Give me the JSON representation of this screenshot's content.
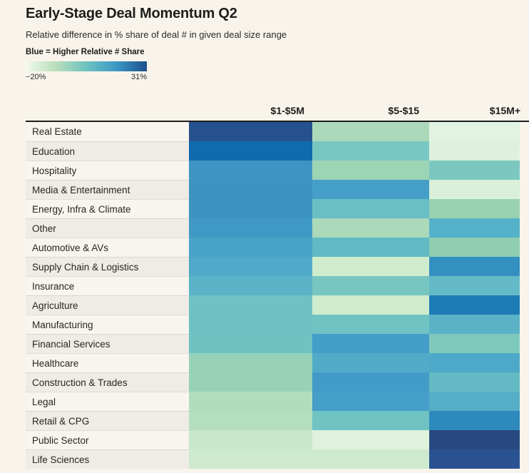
{
  "chart_data": {
    "type": "heatmap",
    "title": "Early-Stage Deal Momentum Q2",
    "subtitle": "Relative difference in % share of deal # in given deal size range",
    "legend": {
      "label": "Blue = Higher Relative # Share",
      "min_label": "−20%",
      "max_label": "31%",
      "min_value": -20,
      "max_value": 31,
      "gradient_stops": [
        "#f2faee",
        "#b9deba",
        "#6dc2c0",
        "#3b98c5",
        "#1d4e8d"
      ]
    },
    "columns": [
      "$1-$5M",
      "$5-$15",
      "$15M+"
    ],
    "rows": [
      "Real Estate",
      "Education",
      "Hospitality",
      "Media & Entertainment",
      "Energy, Infra & Climate",
      "Other",
      "Automotive & AVs",
      "Supply Chain & Logistics",
      "Insurance",
      "Agriculture",
      "Manufacturing",
      "Financial Services",
      "Healthcare",
      "Construction & Trades",
      "Legal",
      "Retail & CPG",
      "Public Sector",
      "Life Sciences"
    ],
    "cell_colors": [
      [
        "#26518f",
        "#abd9b9",
        "#e3f3e3"
      ],
      [
        "#1169ae",
        "#79c7c2",
        "#dff1de"
      ],
      [
        "#3e95c3",
        "#9cd4b6",
        "#7cc8c0"
      ],
      [
        "#3e93c2",
        "#459fc7",
        "#daf0da"
      ],
      [
        "#3d94c3",
        "#69bfc4",
        "#99d2b1"
      ],
      [
        "#4099c5",
        "#abd9b9",
        "#55b1c9"
      ],
      [
        "#4aa3c8",
        "#61bac4",
        "#8fceb0"
      ],
      [
        "#50a9c8",
        "#cfeccd",
        "#3390c0"
      ],
      [
        "#5cb3c7",
        "#78c6c1",
        "#64bac6"
      ],
      [
        "#6ec2c4",
        "#cfeccd",
        "#1d7cb6"
      ],
      [
        "#6dc1c3",
        "#6fc3c2",
        "#5bb2c6"
      ],
      [
        "#6ec2c2",
        "#439dc7",
        "#7fc9bc"
      ],
      [
        "#96d1b8",
        "#51abc8",
        "#4ea9c8"
      ],
      [
        "#97d2b7",
        "#439cc7",
        "#64bac4"
      ],
      [
        "#b2ddbd",
        "#459fc8",
        "#54aec7"
      ],
      [
        "#b5debf",
        "#6fc3c3",
        "#2e89bc"
      ],
      [
        "#c8e8cb",
        "#dff2dc",
        "#28497f"
      ],
      [
        "#cdeacd",
        "#cdeacd",
        "#2a5290"
      ]
    ],
    "values_estimated_pct": [
      [
        28,
        -11,
        -18
      ],
      [
        22,
        -3,
        -17
      ],
      [
        12,
        -9,
        -4
      ],
      [
        12,
        9,
        -17
      ],
      [
        12,
        1,
        -9
      ],
      [
        11,
        -11,
        6
      ],
      [
        8,
        2,
        -7
      ],
      [
        7,
        -15,
        14
      ],
      [
        4,
        -3,
        2
      ],
      [
        0,
        -15,
        18
      ],
      [
        0,
        0,
        4
      ],
      [
        0,
        10,
        -5
      ],
      [
        -8,
        6,
        7
      ],
      [
        -8,
        10,
        2
      ],
      [
        -12,
        9,
        6
      ],
      [
        -12,
        0,
        15
      ],
      [
        -14,
        -17,
        31
      ],
      [
        -15,
        -15,
        27
      ]
    ],
    "layout": {
      "page_bg": "#f8f4ec",
      "label_bg_odd": "#f8f5ee",
      "label_bg_even": "#efece5",
      "header_rule_color": "#1e1e1c"
    }
  }
}
